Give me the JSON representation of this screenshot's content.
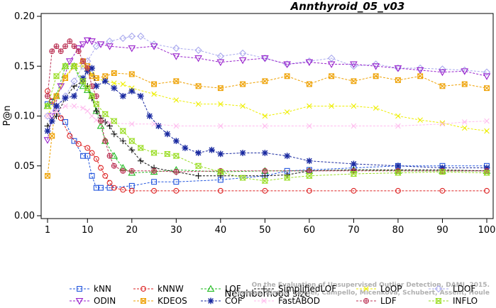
{
  "chart_data": {
    "type": "line",
    "title": "Annthyroid_05_v03",
    "xlabel": "Neighborhood size",
    "ylabel": "P@n",
    "xlim": [
      1,
      100
    ],
    "ylim": [
      0.0,
      0.2
    ],
    "xticks": [
      1,
      10,
      20,
      30,
      40,
      50,
      60,
      70,
      80,
      90,
      100
    ],
    "yticks": [
      0.0,
      0.05,
      0.1,
      0.15,
      0.2
    ],
    "ytick_labels": [
      "0.00",
      "0.05",
      "0.10",
      "0.15",
      "0.20"
    ],
    "grid": false,
    "legend_position": "bottom",
    "credit": [
      "On the Evaluation of Unsupervised Outlier Detection, DAMI, 2015.",
      "Campos, Zimek, Sander, Campello, Micenkova, Schubert, Assent, Houle"
    ],
    "series": [
      {
        "name": "kNN",
        "color": "#2255dd",
        "marker": "square",
        "x": [
          1,
          2,
          3,
          5,
          7,
          9,
          10,
          11,
          12,
          13,
          15,
          20,
          25,
          30,
          40,
          50,
          55,
          60,
          70,
          80,
          90,
          100
        ],
        "y": [
          0.112,
          0.114,
          0.108,
          0.094,
          0.075,
          0.06,
          0.06,
          0.04,
          0.028,
          0.028,
          0.028,
          0.03,
          0.034,
          0.034,
          0.036,
          0.04,
          0.045,
          0.046,
          0.048,
          0.05,
          0.05,
          0.05
        ]
      },
      {
        "name": "kNNW",
        "color": "#dd2222",
        "marker": "circle",
        "x": [
          1,
          2,
          4,
          6,
          8,
          10,
          11,
          12,
          13,
          14,
          15,
          16,
          18,
          20,
          25,
          30,
          40,
          50,
          60,
          70,
          80,
          90,
          100
        ],
        "y": [
          0.125,
          0.115,
          0.098,
          0.08,
          0.072,
          0.068,
          0.063,
          0.057,
          0.048,
          0.04,
          0.033,
          0.028,
          0.026,
          0.025,
          0.025,
          0.025,
          0.025,
          0.025,
          0.025,
          0.025,
          0.025,
          0.025,
          0.025
        ]
      },
      {
        "name": "LOF",
        "color": "#22bb22",
        "marker": "triangle",
        "x": [
          1,
          3,
          5,
          7,
          9,
          10,
          11,
          12,
          13,
          14,
          16,
          18,
          20,
          25,
          30,
          40,
          50,
          60,
          70,
          80,
          90,
          100
        ],
        "y": [
          0.11,
          0.12,
          0.15,
          0.15,
          0.13,
          0.126,
          0.12,
          0.105,
          0.09,
          0.075,
          0.06,
          0.048,
          0.043,
          0.044,
          0.046,
          0.044,
          0.045,
          0.045,
          0.046,
          0.045,
          0.045,
          0.045
        ]
      },
      {
        "name": "SimplifiedLOF",
        "color": "#111111",
        "marker": "plus",
        "x": [
          1,
          3,
          5,
          7,
          9,
          10,
          11,
          12,
          13,
          14,
          15,
          16,
          18,
          20,
          22,
          25,
          30,
          35,
          40,
          50,
          55,
          60,
          70,
          80,
          90,
          100
        ],
        "y": [
          0.09,
          0.1,
          0.118,
          0.13,
          0.135,
          0.13,
          0.118,
          0.105,
          0.098,
          0.094,
          0.09,
          0.082,
          0.075,
          0.066,
          0.055,
          0.048,
          0.044,
          0.04,
          0.04,
          0.04,
          0.041,
          0.045,
          0.046,
          0.046,
          0.046,
          0.045
        ]
      },
      {
        "name": "LoOP",
        "color": "#eeee00",
        "marker": "cross",
        "x": [
          1,
          3,
          5,
          7,
          9,
          10,
          11,
          12,
          14,
          16,
          18,
          20,
          25,
          30,
          35,
          40,
          45,
          50,
          55,
          60,
          65,
          70,
          75,
          80,
          85,
          90,
          95,
          100
        ],
        "y": [
          0.1,
          0.12,
          0.14,
          0.15,
          0.15,
          0.148,
          0.142,
          0.138,
          0.135,
          0.133,
          0.132,
          0.128,
          0.122,
          0.116,
          0.112,
          0.112,
          0.11,
          0.1,
          0.104,
          0.11,
          0.11,
          0.11,
          0.108,
          0.1,
          0.096,
          0.093,
          0.088,
          0.085
        ]
      },
      {
        "name": "LDOF",
        "color": "#aaaaee",
        "marker": "diamond",
        "x": [
          1,
          3,
          5,
          7,
          9,
          10,
          12,
          15,
          18,
          20,
          22,
          25,
          30,
          35,
          40,
          45,
          50,
          55,
          60,
          65,
          70,
          75,
          80,
          85,
          90,
          95,
          100
        ],
        "y": [
          0.1,
          0.11,
          0.12,
          0.135,
          0.15,
          0.155,
          0.17,
          0.175,
          0.178,
          0.18,
          0.18,
          0.172,
          0.168,
          0.166,
          0.16,
          0.163,
          0.158,
          0.152,
          0.155,
          0.158,
          0.15,
          0.152,
          0.148,
          0.148,
          0.147,
          0.146,
          0.144
        ]
      },
      {
        "name": "ODIN",
        "color": "#9922cc",
        "marker": "triangle-down",
        "x": [
          1,
          2,
          4,
          6,
          8,
          9,
          10,
          11,
          13,
          15,
          20,
          25,
          30,
          35,
          40,
          45,
          50,
          55,
          60,
          65,
          70,
          75,
          80,
          85,
          90,
          95,
          100
        ],
        "y": [
          0.076,
          0.1,
          0.13,
          0.155,
          0.168,
          0.172,
          0.176,
          0.175,
          0.172,
          0.17,
          0.168,
          0.17,
          0.16,
          0.158,
          0.154,
          0.156,
          0.158,
          0.152,
          0.154,
          0.152,
          0.152,
          0.15,
          0.148,
          0.146,
          0.144,
          0.145,
          0.14
        ]
      },
      {
        "name": "KDEOS",
        "color": "#eea000",
        "marker": "boxed-cross",
        "x": [
          1,
          2,
          3,
          5,
          7,
          9,
          10,
          11,
          12,
          14,
          16,
          20,
          25,
          30,
          35,
          40,
          45,
          50,
          55,
          60,
          65,
          70,
          75,
          80,
          85,
          90,
          95,
          100
        ],
        "y": [
          0.04,
          0.08,
          0.12,
          0.138,
          0.15,
          0.155,
          0.15,
          0.14,
          0.138,
          0.14,
          0.143,
          0.142,
          0.132,
          0.135,
          0.13,
          0.128,
          0.132,
          0.135,
          0.14,
          0.132,
          0.14,
          0.135,
          0.14,
          0.136,
          0.14,
          0.13,
          0.132,
          0.128
        ]
      },
      {
        "name": "COF",
        "color": "#1a2aa0",
        "marker": "star",
        "x": [
          1,
          2,
          3,
          5,
          7,
          9,
          10,
          11,
          12,
          14,
          16,
          18,
          20,
          22,
          24,
          26,
          28,
          30,
          32,
          35,
          38,
          40,
          45,
          50,
          55,
          60,
          70,
          80,
          90,
          100
        ],
        "y": [
          0.085,
          0.095,
          0.11,
          0.118,
          0.12,
          0.138,
          0.145,
          0.148,
          0.13,
          0.135,
          0.128,
          0.12,
          0.125,
          0.12,
          0.1,
          0.09,
          0.082,
          0.075,
          0.068,
          0.063,
          0.066,
          0.062,
          0.063,
          0.063,
          0.06,
          0.055,
          0.052,
          0.05,
          0.048,
          0.048
        ]
      },
      {
        "name": "FastABOD",
        "color": "#ffbbee",
        "marker": "cross",
        "x": [
          1,
          3,
          5,
          7,
          9,
          10,
          11,
          12,
          15,
          20,
          25,
          30,
          40,
          50,
          60,
          70,
          80,
          90,
          95,
          100
        ],
        "y": [
          0.1,
          0.105,
          0.11,
          0.11,
          0.108,
          0.105,
          0.1,
          0.096,
          0.093,
          0.092,
          0.092,
          0.09,
          0.09,
          0.09,
          0.09,
          0.09,
          0.09,
          0.092,
          0.094,
          0.095
        ]
      },
      {
        "name": "LDF",
        "color": "#bb3355",
        "marker": "circle-plus",
        "x": [
          1,
          2,
          3,
          4,
          5,
          6,
          7,
          8,
          9,
          10,
          11,
          12,
          13,
          14,
          15,
          16,
          18,
          20,
          25,
          30,
          40,
          50,
          60,
          70,
          80,
          90,
          100
        ],
        "y": [
          0.12,
          0.165,
          0.17,
          0.165,
          0.17,
          0.175,
          0.17,
          0.165,
          0.155,
          0.148,
          0.13,
          0.12,
          0.095,
          0.075,
          0.06,
          0.05,
          0.045,
          0.045,
          0.045,
          0.044,
          0.045,
          0.045,
          0.045,
          0.045,
          0.045,
          0.045,
          0.045
        ]
      },
      {
        "name": "INFLO",
        "color": "#99dd22",
        "marker": "hourglass",
        "x": [
          1,
          3,
          5,
          7,
          9,
          10,
          11,
          12,
          14,
          16,
          18,
          20,
          22,
          25,
          28,
          30,
          35,
          40,
          45,
          50,
          55,
          60,
          70,
          80,
          90,
          100
        ],
        "y": [
          0.11,
          0.14,
          0.15,
          0.15,
          0.135,
          0.128,
          0.12,
          0.112,
          0.102,
          0.095,
          0.085,
          0.075,
          0.068,
          0.063,
          0.062,
          0.06,
          0.05,
          0.044,
          0.038,
          0.035,
          0.038,
          0.04,
          0.042,
          0.043,
          0.044,
          0.043
        ]
      }
    ]
  }
}
